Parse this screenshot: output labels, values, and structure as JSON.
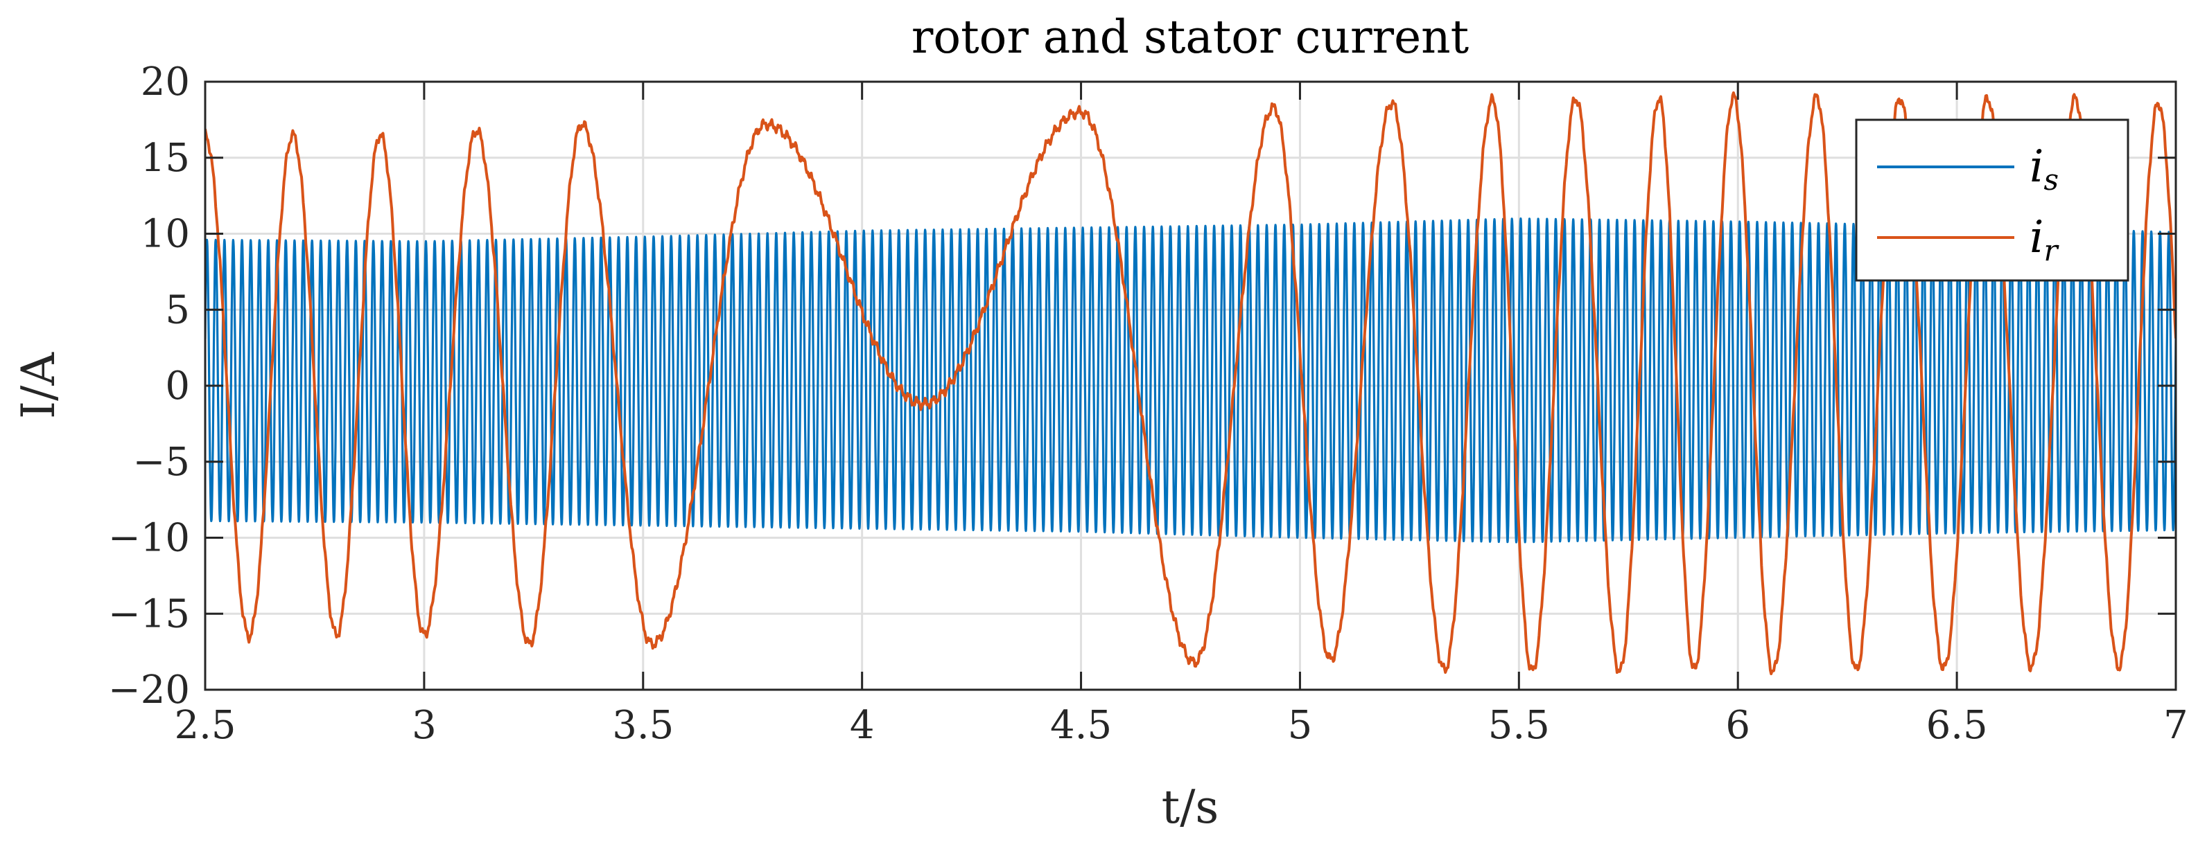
{
  "chart_data": {
    "type": "line",
    "title": "rotor and stator current",
    "xlabel": "t/s",
    "ylabel": "I/A",
    "xlim": [
      2.5,
      7
    ],
    "ylim": [
      -20,
      20
    ],
    "xticks": [
      2.5,
      3,
      3.5,
      4,
      4.5,
      5,
      5.5,
      6,
      6.5,
      7
    ],
    "xtick_labels": [
      "2.5",
      "3",
      "3.5",
      "4",
      "4.5",
      "5",
      "5.5",
      "6",
      "6.5",
      "7"
    ],
    "yticks": [
      -20,
      -15,
      -10,
      -5,
      0,
      5,
      10,
      15,
      20
    ],
    "ytick_labels": [
      "−20",
      "−15",
      "−10",
      "−5",
      "0",
      "5",
      "10",
      "15",
      "20"
    ],
    "grid": true,
    "legend_position": "top-right",
    "series": [
      {
        "name": "i_s",
        "legend_base": "i",
        "legend_sub": "s",
        "color": "#0072BD",
        "frequency_hz": 50,
        "upper_envelope": {
          "x": [
            2.5,
            3.0,
            3.5,
            4.0,
            4.5,
            5.0,
            5.5,
            6.0,
            6.5,
            7.0
          ],
          "y": [
            9.6,
            9.5,
            9.8,
            10.2,
            10.4,
            10.6,
            11.0,
            10.8,
            10.5,
            10.1
          ]
        },
        "lower_envelope": {
          "x": [
            2.5,
            3.0,
            3.5,
            4.0,
            4.5,
            5.0,
            5.5,
            6.0,
            6.5,
            7.0
          ],
          "y": [
            -8.9,
            -9.0,
            -9.2,
            -9.4,
            -9.6,
            -10.0,
            -10.3,
            -10.0,
            -9.7,
            -9.5
          ]
        }
      },
      {
        "name": "i_r",
        "legend_base": "i",
        "legend_sub": "r",
        "color": "#D95319",
        "peaks": {
          "x": [
            2.5,
            2.6,
            2.7,
            2.8,
            2.9,
            3.0,
            3.12,
            3.24,
            3.36,
            3.52,
            3.78,
            4.14,
            4.5,
            4.76,
            4.94,
            5.07,
            5.21,
            5.33,
            5.44,
            5.53,
            5.63,
            5.73,
            5.82,
            5.9,
            5.99,
            6.08,
            6.18,
            6.27,
            6.37,
            6.47,
            6.57,
            6.67,
            6.77,
            6.87,
            6.96
          ],
          "y": [
            16.5,
            -16.5,
            16.5,
            -16.4,
            16.5,
            -16.4,
            16.8,
            -17.0,
            17.2,
            -17.0,
            17.2,
            -1.2,
            18.0,
            -18.2,
            18.3,
            -18.0,
            18.6,
            -18.7,
            18.8,
            -18.8,
            18.9,
            -18.8,
            18.9,
            -18.7,
            19.0,
            -18.8,
            19.0,
            -18.7,
            18.9,
            -18.6,
            18.9,
            -18.5,
            18.9,
            -18.5,
            18.6
          ]
        }
      }
    ]
  }
}
